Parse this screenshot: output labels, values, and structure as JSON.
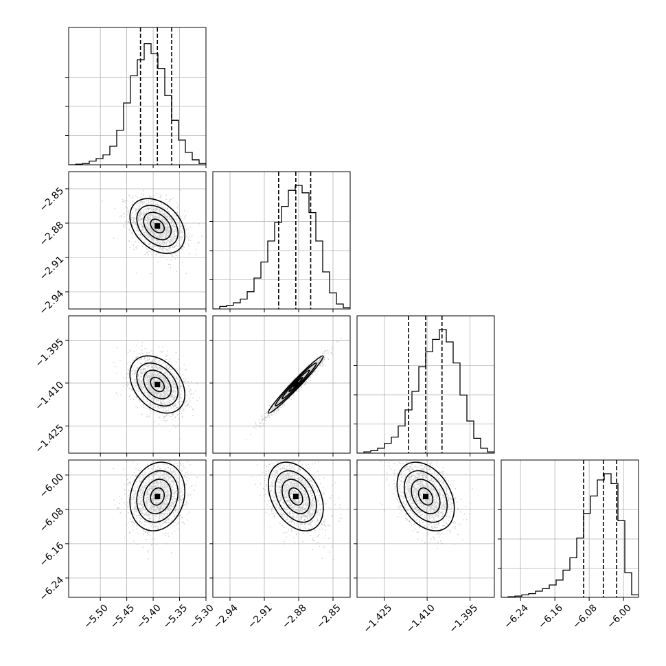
{
  "chart_data": {
    "type": "corner",
    "parameters": [
      {
        "range": [
          -5.56,
          -5.3
        ],
        "mean": -5.392,
        "sd": 0.026,
        "quantiles": [
          -5.424,
          -5.392,
          -5.365
        ],
        "ticks": [
          -5.5,
          -5.45,
          -5.4,
          -5.35,
          -5.3
        ],
        "tick_labels": [
          "−5.50",
          "−5.45",
          "−5.40",
          "−5.35",
          "−5.30"
        ],
        "hist_relative": [
          0.0,
          0.005,
          0.01,
          0.03,
          0.05,
          0.08,
          0.15,
          0.28,
          0.5,
          0.72,
          0.85,
          0.98,
          0.9,
          0.78,
          0.56,
          0.36,
          0.2,
          0.1,
          0.04,
          0.01
        ]
      },
      {
        "range": [
          -2.955,
          -2.835
        ],
        "mean": -2.8825,
        "sd": 0.012,
        "quantiles": [
          -2.8975,
          -2.8825,
          -2.8695
        ],
        "ticks": [
          -2.94,
          -2.91,
          -2.88,
          -2.85
        ],
        "tick_labels": [
          "−2.94",
          "−2.91",
          "−2.88",
          "−2.85"
        ],
        "hist_relative": [
          0.0,
          0.02,
          0.03,
          0.05,
          0.08,
          0.14,
          0.25,
          0.38,
          0.55,
          0.7,
          0.83,
          0.96,
          1.0,
          0.94,
          0.78,
          0.55,
          0.3,
          0.13,
          0.04,
          0.01
        ]
      },
      {
        "range": [
          -1.4345,
          -1.3865
        ],
        "mean": -1.4105,
        "sd": 0.005,
        "quantiles": [
          -1.4165,
          -1.4105,
          -1.4048
        ],
        "ticks": [
          -1.425,
          -1.41,
          -1.395
        ],
        "tick_labels": [
          "−1.425",
          "−1.410",
          "−1.395"
        ],
        "hist_relative": [
          0.0,
          0.01,
          0.02,
          0.04,
          0.08,
          0.13,
          0.22,
          0.35,
          0.5,
          0.7,
          0.82,
          0.92,
          1.0,
          0.9,
          0.73,
          0.47,
          0.26,
          0.12,
          0.04,
          0.01
        ]
      },
      {
        "range": [
          -6.285,
          -5.965
        ],
        "mean": -6.05,
        "sd": 0.04,
        "quantiles": [
          -6.093,
          -6.047,
          -6.016
        ],
        "ticks": [
          -6.24,
          -6.16,
          -6.08,
          -6.0
        ],
        "tick_labels": [
          "−6.24",
          "−6.16",
          "−6.08",
          "−6.00"
        ],
        "hist_relative": [
          0.0,
          0.005,
          0.01,
          0.02,
          0.03,
          0.05,
          0.07,
          0.1,
          0.14,
          0.22,
          0.32,
          0.48,
          0.68,
          0.82,
          0.95,
          1.0,
          0.92,
          0.62,
          0.2,
          0.02
        ]
      }
    ],
    "correlations": [
      [
        1.0,
        -0.35,
        -0.35,
        0.15
      ],
      [
        -0.35,
        1.0,
        0.98,
        -0.35
      ],
      [
        -0.35,
        0.98,
        1.0,
        -0.35
      ],
      [
        0.15,
        -0.35,
        -0.35,
        1.0
      ]
    ],
    "contour_levels": [
      0.5,
      1.0,
      1.5,
      2.0
    ],
    "grid": true,
    "legend": "none"
  }
}
